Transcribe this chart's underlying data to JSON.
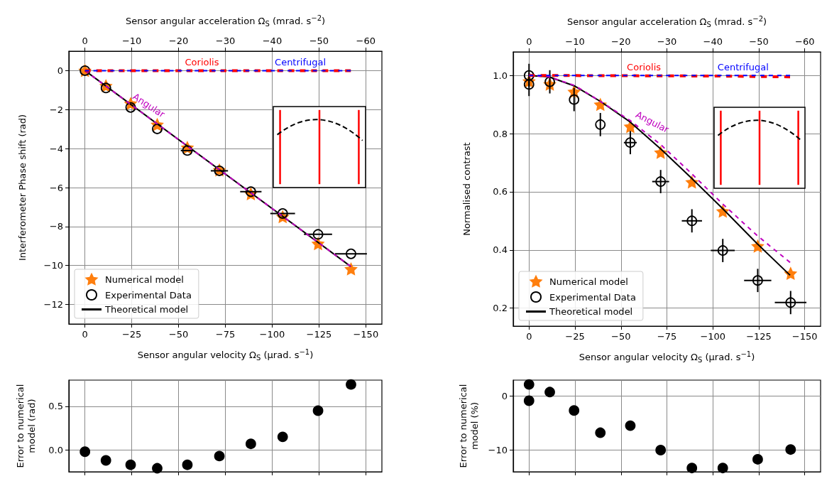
{
  "chart_data": [
    {
      "type": "scatter",
      "xlabel": "Sensor angular velocity Ω$_{S}$ (μrad. s$^{−1}$)",
      "x2label": "Sensor angular acceleration Ω̇$_{S}$ (mrad. s$^{−2}$)",
      "ylabel": "Interferometer Phase shift (rad)",
      "xlim": [
        8.6,
        -158.6
      ],
      "xticks": [
        0,
        {
          "value": -25,
          "label": "−25"
        },
        {
          "value": -50,
          "label": "−50"
        },
        {
          "value": -75,
          "label": "−75"
        },
        {
          "value": -100,
          "label": "−100"
        },
        {
          "value": -125,
          "label": "−125"
        },
        {
          "value": -150,
          "label": "−150"
        }
      ],
      "x2lim": [
        3.44,
        -63.44
      ],
      "x2ticks": [
        0,
        {
          "value": -10,
          "label": "−10"
        },
        {
          "value": -20,
          "label": "−20"
        },
        {
          "value": -30,
          "label": "−30"
        },
        {
          "value": -40,
          "label": "−40"
        },
        {
          "value": -50,
          "label": "−50"
        },
        {
          "value": -60,
          "label": "−60"
        }
      ],
      "ylim": [
        -13,
        1
      ],
      "yticks": [
        {
          "value": -12,
          "label": "−12"
        },
        {
          "value": -10,
          "label": "−10"
        },
        {
          "value": -8,
          "label": "−8"
        },
        {
          "value": -6,
          "label": "−6"
        },
        {
          "value": -4,
          "label": "−4"
        },
        {
          "value": -2,
          "label": "−2"
        },
        0
      ],
      "grid": true,
      "legend": "bottom left",
      "series": [
        {
          "name": "Numerical model",
          "marker": "star",
          "color": "#ff7f0e",
          "x": [
            0,
            -11.2,
            -24.4,
            -38.6,
            -54.7,
            -71.8,
            -88.6,
            -105.6,
            -124.5,
            -142.1
          ],
          "values": [
            0,
            -0.78,
            -1.69,
            -2.77,
            -3.95,
            -5.1,
            -6.32,
            -7.5,
            -8.88,
            -10.18
          ]
        },
        {
          "name": "Experimental Data",
          "marker": "circle",
          "color": "#000000",
          "x": [
            0,
            -11.2,
            -24.4,
            -38.6,
            -54.7,
            -71.8,
            -88.6,
            -105.6,
            -124.5,
            -142.1
          ],
          "values": [
            0,
            -0.89,
            -1.89,
            -2.99,
            -4.1,
            -5.14,
            -6.21,
            -7.33,
            -8.4,
            -9.4
          ],
          "xerrors": [
            null,
            null,
            null,
            null,
            3.5,
            4.6,
            5.7,
            6.6,
            7.5,
            8.5
          ]
        },
        {
          "name": "Theoretical model",
          "type": "line",
          "color": "#000000",
          "x": [
            0,
            -142
          ],
          "values": [
            0,
            -10.05
          ]
        },
        {
          "name": "Angular",
          "type": "line",
          "line_style": "dashed",
          "color": "#bf00bf",
          "x": [
            0,
            -142
          ],
          "values": [
            0,
            -10.05
          ]
        },
        {
          "name": "Coriolis",
          "type": "line",
          "line_style": "dashed",
          "color": "#ff0000",
          "x": [
            0,
            -142
          ],
          "values": [
            0,
            0
          ]
        },
        {
          "name": "Centrifugal",
          "type": "line",
          "line_style": "dashed",
          "color": "#0000ff",
          "x": [
            0,
            -142
          ],
          "values": [
            0,
            0
          ]
        }
      ]
    },
    {
      "type": "scatter",
      "xlabel": "Sensor angular velocity Ω$_{S}$ (μrad. s$^{−1}$)",
      "x2label": "Sensor angular acceleration Ω̇$_{S}$ (mrad. s$^{−2}$)",
      "ylabel": "Normalised contrast",
      "xlim": [
        8.6,
        -158.6
      ],
      "xticks": [
        0,
        {
          "value": -25,
          "label": "−25"
        },
        {
          "value": -50,
          "label": "−50"
        },
        {
          "value": -75,
          "label": "−75"
        },
        {
          "value": -100,
          "label": "−100"
        },
        {
          "value": -125,
          "label": "−125"
        },
        {
          "value": -150,
          "label": "−150"
        }
      ],
      "x2lim": [
        3.44,
        -63.44
      ],
      "x2ticks": [
        0,
        {
          "value": -10,
          "label": "−10"
        },
        {
          "value": -20,
          "label": "−20"
        },
        {
          "value": -30,
          "label": "−30"
        },
        {
          "value": -40,
          "label": "−40"
        },
        {
          "value": -50,
          "label": "−50"
        },
        {
          "value": -60,
          "label": "−60"
        }
      ],
      "ylim": [
        0.138,
        1.081
      ],
      "yticks": [
        0.2,
        0.4,
        0.6,
        0.8,
        {
          "value": 1,
          "label": "1.0"
        }
      ],
      "grid": true,
      "legend": "bottom left",
      "series": [
        {
          "name": "Numerical model",
          "marker": "star",
          "color": "#ff7f0e",
          "x": [
            0,
            -11.3,
            -24.5,
            -38.8,
            -55.1,
            -71.6,
            -88.6,
            -105.4,
            -124.4,
            -142.3
          ],
          "values": [
            0.98,
            0.97,
            0.944,
            0.9,
            0.824,
            0.735,
            0.633,
            0.533,
            0.413,
            0.319
          ]
        },
        {
          "name": "Experimental Data",
          "marker": "circle",
          "color": "#000000",
          "x": [
            0,
            0,
            -11.3,
            -24.5,
            -38.8,
            -55.1,
            -71.6,
            -88.6,
            -105.4,
            -124.4,
            -142.3
          ],
          "values": [
            1.0,
            0.969,
            0.978,
            0.917,
            0.831,
            0.769,
            0.635,
            0.5,
            0.398,
            0.295,
            0.219
          ],
          "errors": [
            0.04,
            0.04,
            0.04,
            0.04,
            0.04,
            0.04,
            0.04,
            0.04,
            0.04,
            0.04,
            0.04
          ],
          "xerrors": [
            null,
            null,
            null,
            null,
            null,
            3.5,
            4.6,
            5.5,
            6.5,
            7.4,
            8.6
          ]
        },
        {
          "name": "Theoretical model",
          "type": "line",
          "color": "#000000",
          "x": [
            0,
            -11,
            -25,
            -39,
            -55,
            -72,
            -88,
            -105,
            -124,
            -142
          ],
          "values": [
            1.0,
            0.995,
            0.963,
            0.91,
            0.84,
            0.745,
            0.649,
            0.544,
            0.422,
            0.313
          ]
        },
        {
          "name": "Angular",
          "type": "line",
          "line_style": "dashed",
          "color": "#bf00bf",
          "x": [
            0,
            -11,
            -25,
            -39,
            -55,
            -72,
            -88,
            -105,
            -124,
            -142
          ],
          "values": [
            1.0,
            0.995,
            0.965,
            0.91,
            0.845,
            0.76,
            0.665,
            0.56,
            0.45,
            0.357
          ]
        },
        {
          "name": "Coriolis",
          "type": "line",
          "line_style": "dashed",
          "color": "#ff0000",
          "x": [
            0,
            -100,
            -142
          ],
          "values": [
            1.0,
            0.998,
            0.995
          ]
        },
        {
          "name": "Centrifugal",
          "type": "line",
          "line_style": "dashed",
          "color": "#0000ff",
          "x": [
            0,
            -142
          ],
          "values": [
            1.0,
            1.0
          ]
        }
      ]
    },
    {
      "type": "scatter",
      "ylabel": "Error to numerical model (rad)",
      "xlim": [
        8.6,
        -158.6
      ],
      "xticks": [
        0,
        -25,
        -50,
        -75,
        -100,
        -125,
        -150
      ],
      "tick_labels": "y",
      "ylim": [
        -0.25,
        0.8
      ],
      "yticks": [
        {
          "value": 0,
          "label": "0.0"
        },
        0.5
      ],
      "grid": true,
      "series": [
        {
          "marker": "circle",
          "color": "#000000",
          "x": [
            0,
            -11.2,
            -24.4,
            -38.6,
            -54.7,
            -71.8,
            -88.6,
            -105.6,
            -124.5,
            -142.1
          ],
          "values": [
            -0.02,
            -0.12,
            -0.17,
            -0.21,
            -0.17,
            -0.07,
            0.07,
            0.15,
            0.45,
            0.75
          ]
        }
      ]
    },
    {
      "type": "scatter",
      "ylabel": "Error to numerical model (%)",
      "xlim": [
        8.6,
        -158.6
      ],
      "xticks": [
        0,
        -25,
        -50,
        -75,
        -100,
        -125,
        -150
      ],
      "tick_labels": "y",
      "ylim": [
        -14,
        2.9
      ],
      "yticks": [
        {
          "value": -10,
          "label": "−10"
        },
        0
      ],
      "grid": true,
      "series": [
        {
          "marker": "circle",
          "color": "#000000",
          "x": [
            0,
            0,
            -11.3,
            -24.5,
            -38.8,
            -55.1,
            -71.6,
            -88.6,
            -105.4,
            -124.4,
            -142.3
          ],
          "values": [
            2.1,
            -0.9,
            0.7,
            -2.7,
            -6.8,
            -5.5,
            -10,
            -13.3,
            -13.3,
            -11.7,
            -9.9
          ]
        }
      ]
    }
  ]
}
